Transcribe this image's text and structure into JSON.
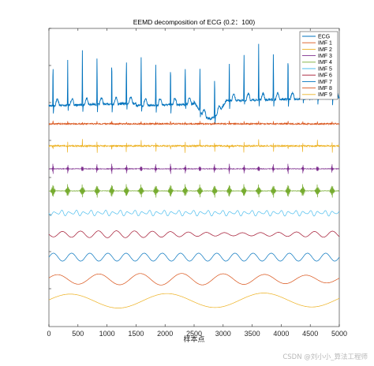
{
  "chart_data": {
    "type": "line",
    "title": "EEMD decomposition of ECG (0.2：100)",
    "xlabel": "样本点",
    "ylabel": "",
    "xlim": [
      0,
      5000
    ],
    "xticks": [
      0,
      500,
      1000,
      1500,
      2000,
      2500,
      3000,
      3500,
      4000,
      4500,
      5000
    ],
    "grid": false,
    "legend_position": "top-right",
    "series": [
      {
        "name": "ECG",
        "color": "#0072BD",
        "kind": "ecg-signal",
        "beat_period_samples": 253,
        "description_values": {
          "baseline_drift": "rising, dip near 2700",
          "peaks": "tall R-waves"
        }
      },
      {
        "name": "IMF 1",
        "color": "#D95319",
        "kind": "high-frequency noise with beat spikes"
      },
      {
        "name": "IMF 2",
        "color": "#EDB120",
        "kind": "high-frequency with beat spikes"
      },
      {
        "name": "IMF 3",
        "color": "#7E2F8E",
        "kind": "beat-locked bursts"
      },
      {
        "name": "IMF 4",
        "color": "#77AC30",
        "kind": "beat-locked bursts"
      },
      {
        "name": "IMF 5",
        "color": "#4DBEEE",
        "kind": "beat-locked oscillation"
      },
      {
        "name": "IMF 6",
        "color": "#A2142F",
        "kind": "slow oscillation"
      },
      {
        "name": "IMF 7",
        "color": "#0072BD",
        "kind": "sinusoid",
        "cycles": 16
      },
      {
        "name": "IMF 8",
        "color": "#D95319",
        "kind": "sinusoid",
        "cycles": 7
      },
      {
        "name": "IMF 9",
        "color": "#EDB120",
        "kind": "sinusoid",
        "cycles": 3
      }
    ]
  },
  "watermark": "CSDN @刘小小_算法工程师"
}
